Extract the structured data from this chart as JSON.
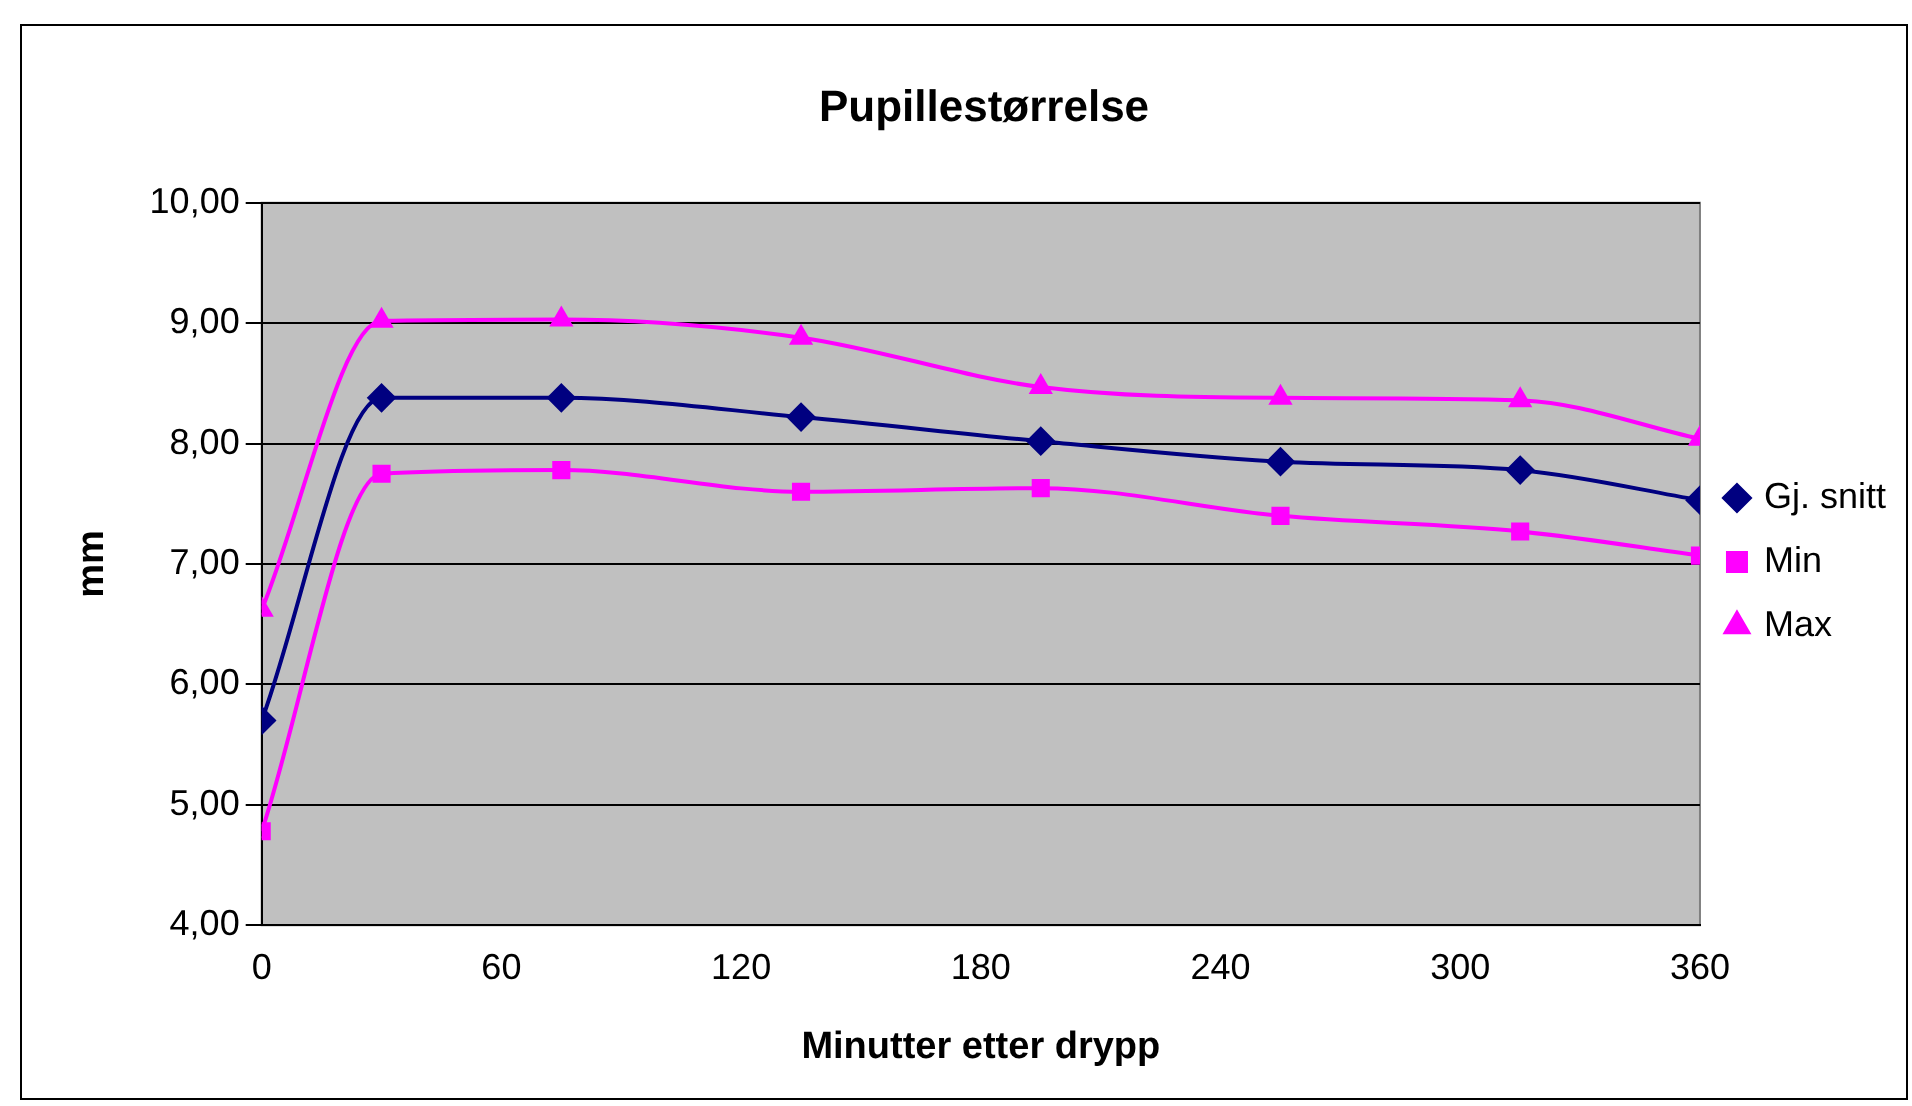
{
  "chart_data": {
    "type": "line",
    "title": "Pupillestørrelse",
    "xlabel": "Minutter etter drypp",
    "ylabel": "mm",
    "x": [
      0,
      30,
      75,
      135,
      195,
      255,
      315,
      360
    ],
    "series": [
      {
        "name": "Gj. snitt",
        "color": "#000080",
        "marker": "diamond",
        "values": [
          5.7,
          8.38,
          8.38,
          8.22,
          8.02,
          7.85,
          7.78,
          7.53
        ]
      },
      {
        "name": "Min",
        "color": "#ff00ff",
        "marker": "square",
        "values": [
          4.78,
          7.75,
          7.78,
          7.6,
          7.63,
          7.4,
          7.27,
          7.07
        ]
      },
      {
        "name": "Max",
        "color": "#ff00ff",
        "marker": "triangle",
        "values": [
          6.62,
          9.02,
          9.03,
          8.88,
          8.47,
          8.38,
          8.36,
          8.04
        ]
      }
    ],
    "xlim": [
      0,
      360
    ],
    "xticks": [
      0,
      60,
      120,
      180,
      240,
      300,
      360
    ],
    "ylim": [
      4,
      10
    ],
    "yticks": [
      {
        "value": 4,
        "label": "4,00"
      },
      {
        "value": 5,
        "label": "5,00"
      },
      {
        "value": 6,
        "label": "6,00"
      },
      {
        "value": 7,
        "label": "7,00"
      },
      {
        "value": 8,
        "label": "8,00"
      },
      {
        "value": 9,
        "label": "9,00"
      },
      {
        "value": 10,
        "label": "10,00"
      }
    ],
    "grid": "y",
    "legend": "right",
    "line_style": "solid"
  }
}
